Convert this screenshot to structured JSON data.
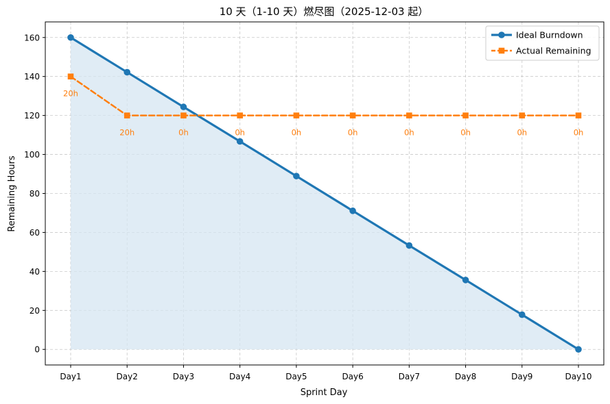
{
  "chart_data": {
    "type": "line",
    "title": "10 天（1-10 天）燃尽图（2025-12-03 起）",
    "xlabel": "Sprint Day",
    "ylabel": "Remaining Hours",
    "categories": [
      "Day1",
      "Day2",
      "Day3",
      "Day4",
      "Day5",
      "Day6",
      "Day7",
      "Day8",
      "Day9",
      "Day10"
    ],
    "ylim": [
      -8,
      168
    ],
    "yticks": [
      0,
      20,
      40,
      60,
      80,
      100,
      120,
      140,
      160
    ],
    "grid": true,
    "legend_position": "top-right",
    "series": [
      {
        "name": "Ideal Burndown",
        "values": [
          160,
          142.2,
          124.4,
          106.7,
          88.9,
          71.1,
          53.3,
          35.6,
          17.8,
          0
        ],
        "color": "#1f77b4",
        "line_style": "solid",
        "marker": "circle",
        "fill_below": true,
        "fill_color": "#d6e6f1"
      },
      {
        "name": "Actual Remaining",
        "values": [
          140,
          120,
          120,
          120,
          120,
          120,
          120,
          120,
          120,
          120
        ],
        "color": "#ff7f0e",
        "line_style": "dashed",
        "marker": "square",
        "point_labels": [
          "20h",
          "20h",
          "0h",
          "0h",
          "0h",
          "0h",
          "0h",
          "0h",
          "0h",
          "0h"
        ]
      }
    ]
  }
}
